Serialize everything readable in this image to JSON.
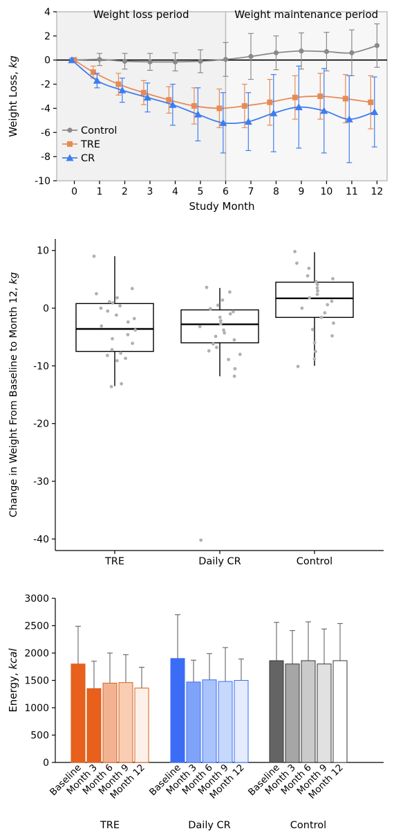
{
  "chart_data": [
    {
      "type": "line",
      "xlabel": "Study Month",
      "ylabel_main": "Weight Loss, ",
      "ylabel_unit": "kg",
      "xlim": [
        -0.7,
        12.4
      ],
      "ylim": [
        -10,
        4
      ],
      "xticks": [
        0,
        1,
        2,
        3,
        4,
        5,
        6,
        7,
        8,
        9,
        10,
        11,
        12
      ],
      "yticks": [
        -10,
        -8,
        -6,
        -4,
        -2,
        0,
        2,
        4
      ],
      "periods": [
        "Weight loss period",
        "Weight maintenance period"
      ],
      "period_split": 6,
      "legend_position": "middle-left",
      "series": [
        {
          "name": "Control",
          "color": "#8a8a8a",
          "marker": "circle",
          "x": [
            0,
            1,
            2,
            3,
            4,
            5,
            6,
            7,
            8,
            9,
            10,
            11,
            12
          ],
          "y": [
            0,
            0.05,
            -0.1,
            -0.15,
            -0.15,
            -0.1,
            0.05,
            0.3,
            0.6,
            0.75,
            0.7,
            0.6,
            1.2
          ],
          "err": [
            0.2,
            0.5,
            0.65,
            0.7,
            0.75,
            0.95,
            1.4,
            1.9,
            1.4,
            1.5,
            1.6,
            1.9,
            1.8
          ]
        },
        {
          "name": "TRE",
          "color": "#e88a55",
          "marker": "square",
          "x": [
            0,
            0.75,
            1.75,
            2.75,
            3.75,
            4.75,
            5.75,
            6.75,
            7.75,
            8.75,
            9.75,
            10.75,
            11.75
          ],
          "y": [
            0,
            -1.0,
            -2.0,
            -2.7,
            -3.3,
            -3.8,
            -4.0,
            -3.8,
            -3.5,
            -3.1,
            -3.0,
            -3.2,
            -3.5
          ],
          "err": [
            0.1,
            0.5,
            0.9,
            1.0,
            1.1,
            1.5,
            1.6,
            1.8,
            1.9,
            1.8,
            1.9,
            2.0,
            2.2
          ]
        },
        {
          "name": "CR",
          "color": "#3d7df0",
          "marker": "triangle",
          "x": [
            -0.1,
            0.9,
            1.9,
            2.9,
            3.9,
            4.9,
            5.9,
            6.9,
            7.9,
            8.9,
            9.9,
            10.9,
            11.9
          ],
          "y": [
            0,
            -1.7,
            -2.5,
            -3.1,
            -3.7,
            -4.5,
            -5.2,
            -5.1,
            -4.4,
            -3.9,
            -4.2,
            -4.9,
            -4.3
          ],
          "err": [
            0.15,
            0.6,
            1.0,
            1.2,
            1.7,
            2.2,
            2.5,
            2.4,
            3.2,
            3.4,
            3.5,
            3.6,
            2.9
          ]
        }
      ]
    },
    {
      "type": "box",
      "ylabel_main": "Change in Weight From Baseline to Month 12, ",
      "ylabel_unit": "kg",
      "ylim": [
        -42,
        12
      ],
      "yticks": [
        -40,
        -30,
        -20,
        -10,
        0,
        10
      ],
      "groups": [
        {
          "name": "TRE",
          "whisker_low": -13.5,
          "q1": -7.5,
          "median": -3.6,
          "q3": 0.8,
          "whisker_high": 9.0,
          "points": [
            9,
            3.4,
            2.5,
            1.8,
            1.1,
            0.9,
            0.4,
            0,
            -0.5,
            -1.2,
            -1.8,
            -2.4,
            -3.1,
            -3.8,
            -4.6,
            -5.3,
            -6.1,
            -7.2,
            -7.8,
            -8.2,
            -8.7,
            -9.1,
            -13.1,
            -13.6
          ]
        },
        {
          "name": "Daily CR",
          "whisker_low": -11.8,
          "q1": -6.0,
          "median": -2.8,
          "q3": -0.3,
          "whisker_high": 3.5,
          "points": [
            3.6,
            2.8,
            1.4,
            0.5,
            -0.1,
            -0.6,
            -1.0,
            -1.6,
            -2.2,
            -2.7,
            -3.2,
            -3.8,
            -4.3,
            -4.9,
            -5.5,
            -6.2,
            -6.8,
            -7.4,
            -8.0,
            -8.9,
            -10.5,
            -11.8,
            -40.2
          ]
        },
        {
          "name": "Control",
          "whisker_low": -10.0,
          "q1": -1.6,
          "median": 1.7,
          "q3": 4.5,
          "whisker_high": 9.7,
          "points": [
            9.8,
            7.8,
            6.9,
            5.6,
            5.1,
            4.6,
            4.1,
            3.5,
            3.0,
            2.4,
            1.8,
            1.2,
            0.6,
            0,
            -0.8,
            -1.6,
            -2.6,
            -3.7,
            -4.8,
            -6.0,
            -7.5,
            -8.8,
            -10.1
          ]
        }
      ]
    },
    {
      "type": "bar",
      "ylabel_main": "Energy, ",
      "ylabel_unit": "kcal",
      "ylim": [
        0,
        3000
      ],
      "yticks": [
        0,
        500,
        1000,
        1500,
        2000,
        2500,
        3000
      ],
      "timepoints": [
        "Baseline",
        "Month 3",
        "Month 6",
        "Month 9",
        "Month 12"
      ],
      "groups": [
        {
          "name": "TRE",
          "values": [
            1800,
            1350,
            1450,
            1460,
            1360
          ],
          "errors": [
            690,
            500,
            550,
            510,
            380
          ],
          "fills": [
            "#e8601c",
            "#e8601c",
            "#f3b393",
            "#f8cdb4",
            "#fdf0e8"
          ],
          "stroke": "#d8601c"
        },
        {
          "name": "Daily CR",
          "values": [
            1900,
            1470,
            1510,
            1480,
            1500
          ],
          "errors": [
            800,
            400,
            480,
            620,
            390
          ],
          "fills": [
            "#3b6cf6",
            "#7fa3f8",
            "#a9c3fb",
            "#c6d8fc",
            "#e4ecfe"
          ],
          "stroke": "#3b6cf6"
        },
        {
          "name": "Control",
          "values": [
            1860,
            1800,
            1860,
            1800,
            1860
          ],
          "errors": [
            700,
            610,
            710,
            640,
            680
          ],
          "fills": [
            "#646464",
            "#a6a6a6",
            "#cacaca",
            "#e1e1e1",
            "#ffffff"
          ],
          "stroke": "#333333"
        }
      ]
    }
  ]
}
